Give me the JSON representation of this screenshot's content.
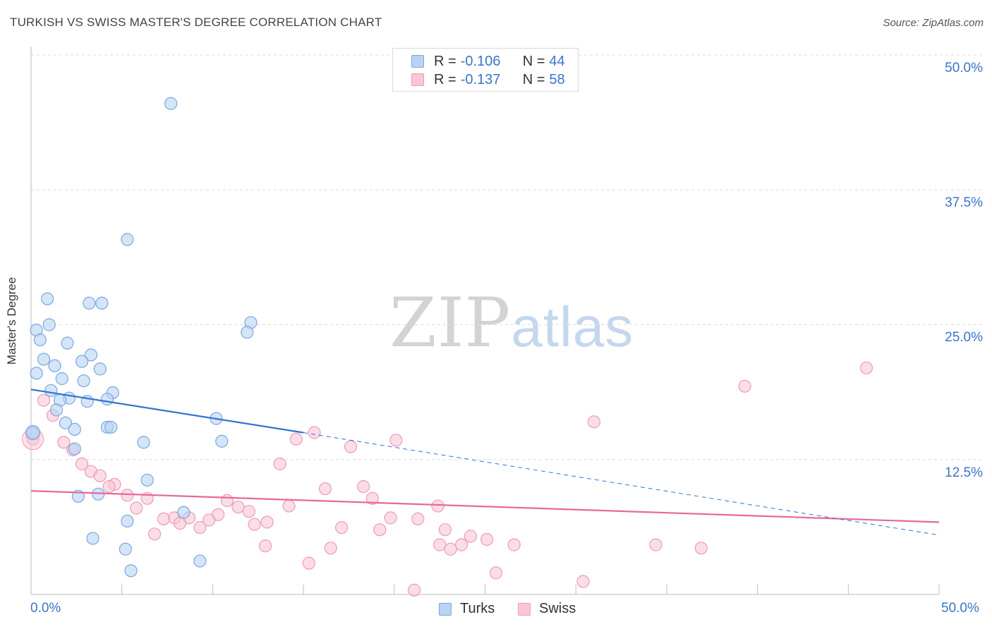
{
  "header": {
    "title": "TURKISH VS SWISS MASTER'S DEGREE CORRELATION CHART",
    "source": "Source: ZipAtlas.com"
  },
  "legend": {
    "turks": {
      "r_label": "R =",
      "r_value": "-0.106",
      "n_label": "N =",
      "n_value": "44"
    },
    "swiss": {
      "r_label": "R =",
      "r_value": "-0.137",
      "n_label": "N =",
      "n_value": "58"
    }
  },
  "watermark": {
    "zip": "ZIP",
    "atlas": "atlas"
  },
  "colors": {
    "turks_fill": "#b9d3f3",
    "turks_stroke": "#7aa6e0",
    "turks_line": "#2f74d0",
    "swiss_fill": "#f9c6d6",
    "swiss_stroke": "#ee9ab6",
    "swiss_line": "#e8689a"
  },
  "chart_data": {
    "type": "scatter",
    "title": "TURKISH VS SWISS MASTER'S DEGREE CORRELATION CHART",
    "xlabel": "",
    "ylabel": "Master's Degree",
    "xlim": [
      0,
      50
    ],
    "ylim": [
      0,
      50
    ],
    "x_tick_labels": [
      "0.0%",
      "50.0%"
    ],
    "y_tick_labels": [
      "12.5%",
      "25.0%",
      "37.5%",
      "50.0%"
    ],
    "y_ticks": [
      12.5,
      25.0,
      37.5,
      50.0
    ],
    "grid": true,
    "legend_position": "bottom-center",
    "series": [
      {
        "name": "Turks",
        "points": [
          [
            7.7,
            45.5
          ],
          [
            5.3,
            32.9
          ],
          [
            0.9,
            27.4
          ],
          [
            3.2,
            27.0
          ],
          [
            3.9,
            27.0
          ],
          [
            0.3,
            24.5
          ],
          [
            1.0,
            25.0
          ],
          [
            12.1,
            25.2
          ],
          [
            11.9,
            24.3
          ],
          [
            0.5,
            23.6
          ],
          [
            2.0,
            23.3
          ],
          [
            0.7,
            21.8
          ],
          [
            3.3,
            22.2
          ],
          [
            2.8,
            21.6
          ],
          [
            1.3,
            21.2
          ],
          [
            3.8,
            20.9
          ],
          [
            0.3,
            20.5
          ],
          [
            1.7,
            20.0
          ],
          [
            2.9,
            19.8
          ],
          [
            1.1,
            18.9
          ],
          [
            4.5,
            18.7
          ],
          [
            2.1,
            18.2
          ],
          [
            1.6,
            18.0
          ],
          [
            4.2,
            18.1
          ],
          [
            3.1,
            17.9
          ],
          [
            1.4,
            17.1
          ],
          [
            10.2,
            16.3
          ],
          [
            1.9,
            15.9
          ],
          [
            4.2,
            15.5
          ],
          [
            4.4,
            15.5
          ],
          [
            2.4,
            15.3
          ],
          [
            0.1,
            15.0
          ],
          [
            6.2,
            14.1
          ],
          [
            10.5,
            14.2
          ],
          [
            2.4,
            13.5
          ],
          [
            6.4,
            10.6
          ],
          [
            2.6,
            9.1
          ],
          [
            3.7,
            9.3
          ],
          [
            8.4,
            7.6
          ],
          [
            5.3,
            6.8
          ],
          [
            3.4,
            5.2
          ],
          [
            5.2,
            4.2
          ],
          [
            5.5,
            2.2
          ],
          [
            9.3,
            3.1
          ]
        ]
      },
      {
        "name": "Swiss",
        "points": [
          [
            0.1,
            14.4
          ],
          [
            46.0,
            21.0
          ],
          [
            39.3,
            19.3
          ],
          [
            0.7,
            18.0
          ],
          [
            1.2,
            16.6
          ],
          [
            31.0,
            16.0
          ],
          [
            15.6,
            15.0
          ],
          [
            14.6,
            14.4
          ],
          [
            20.1,
            14.3
          ],
          [
            17.6,
            13.7
          ],
          [
            1.8,
            14.1
          ],
          [
            2.3,
            13.4
          ],
          [
            2.8,
            12.1
          ],
          [
            3.3,
            11.4
          ],
          [
            13.7,
            12.1
          ],
          [
            3.8,
            11.0
          ],
          [
            4.6,
            10.2
          ],
          [
            4.3,
            10.0
          ],
          [
            16.2,
            9.8
          ],
          [
            18.3,
            10.0
          ],
          [
            5.3,
            9.2
          ],
          [
            6.4,
            8.9
          ],
          [
            10.8,
            8.7
          ],
          [
            18.8,
            8.9
          ],
          [
            11.4,
            8.1
          ],
          [
            14.2,
            8.2
          ],
          [
            22.4,
            8.2
          ],
          [
            5.8,
            8.0
          ],
          [
            12.0,
            7.7
          ],
          [
            10.3,
            7.4
          ],
          [
            19.8,
            7.1
          ],
          [
            21.3,
            7.0
          ],
          [
            7.3,
            7.0
          ],
          [
            7.9,
            7.1
          ],
          [
            8.7,
            7.1
          ],
          [
            9.8,
            6.9
          ],
          [
            8.2,
            6.6
          ],
          [
            13.0,
            6.7
          ],
          [
            12.3,
            6.5
          ],
          [
            9.3,
            6.2
          ],
          [
            17.1,
            6.2
          ],
          [
            19.2,
            6.0
          ],
          [
            22.8,
            6.0
          ],
          [
            6.8,
            5.6
          ],
          [
            24.2,
            5.4
          ],
          [
            25.1,
            5.1
          ],
          [
            22.5,
            4.6
          ],
          [
            23.7,
            4.6
          ],
          [
            26.6,
            4.6
          ],
          [
            34.4,
            4.6
          ],
          [
            36.9,
            4.3
          ],
          [
            12.9,
            4.5
          ],
          [
            16.5,
            4.3
          ],
          [
            23.1,
            4.2
          ],
          [
            15.3,
            2.9
          ],
          [
            25.6,
            2.0
          ],
          [
            30.4,
            1.2
          ],
          [
            21.1,
            0.4
          ]
        ]
      }
    ],
    "trendlines": [
      {
        "series": "Turks",
        "solid": [
          [
            0,
            19.0
          ],
          [
            15,
            15.0
          ]
        ],
        "dashed": [
          [
            15,
            15.0
          ],
          [
            50,
            5.5
          ]
        ]
      },
      {
        "series": "Swiss",
        "solid": [
          [
            0,
            9.6
          ],
          [
            50,
            6.7
          ]
        ]
      }
    ]
  },
  "bottom_legend": {
    "turks": "Turks",
    "swiss": "Swiss"
  }
}
